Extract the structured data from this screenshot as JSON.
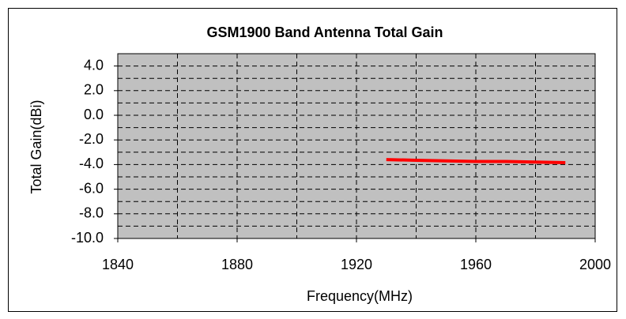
{
  "chart_data": {
    "type": "line",
    "title": "GSM1900 Band Antenna Total Gain",
    "x_label": "Frequency(MHz)",
    "y_label": "Total Gain(dBi)",
    "series": [
      {
        "name": "Total Gain",
        "color": "#ff0000",
        "x": [
          1930,
          1940,
          1950,
          1960,
          1970,
          1980,
          1990
        ],
        "values": [
          -3.6,
          -3.65,
          -3.7,
          -3.75,
          -3.75,
          -3.8,
          -3.85
        ]
      }
    ],
    "xlim": [
      1840,
      2000
    ],
    "xticks": [
      1840,
      1880,
      1920,
      1960,
      2000
    ],
    "xminor_ticks": [
      1860,
      1900,
      1940,
      1980
    ],
    "ylim": [
      -10,
      5
    ],
    "yticks": [
      {
        "value": 4,
        "label": "4.0"
      },
      {
        "value": 2,
        "label": "2.0"
      },
      {
        "value": 0,
        "label": "0.0"
      },
      {
        "value": -2,
        "label": "-2.0"
      },
      {
        "value": -4,
        "label": "-4.0"
      },
      {
        "value": -6,
        "label": "-6.0"
      },
      {
        "value": -8,
        "label": "-8.0"
      },
      {
        "value": -10,
        "label": "-10.0"
      }
    ],
    "yminor_ticks": [
      5,
      3,
      1,
      -1,
      -3,
      -5,
      -7,
      -9
    ],
    "grid": true,
    "plot_background": "#c0c0c0"
  }
}
